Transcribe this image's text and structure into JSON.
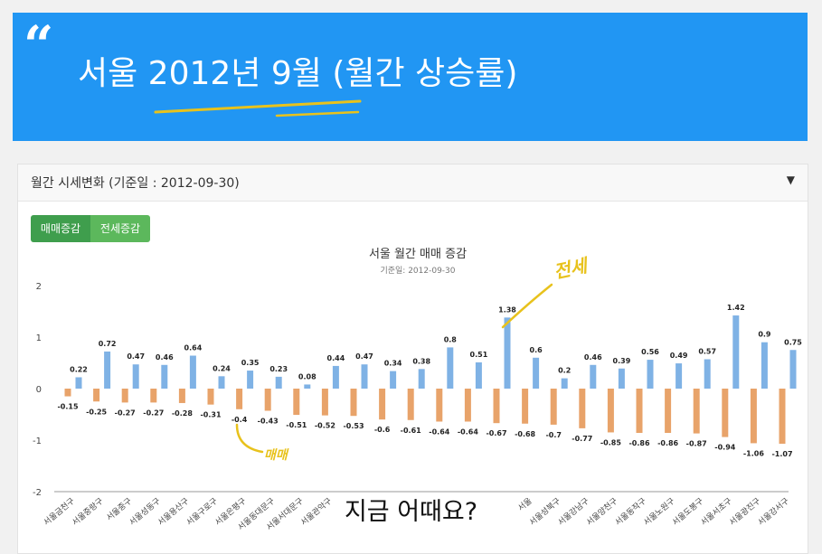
{
  "banner": {
    "quote_mark": "“",
    "title": "서울 2012년 9월 (월간 상승률)"
  },
  "card": {
    "title": "월간 시세변화 (기준일 : 2012-09-30)",
    "caret": "▼",
    "tabs": [
      {
        "label": "매매증감",
        "active": true
      },
      {
        "label": "전세증감",
        "active": false
      }
    ]
  },
  "annotations": {
    "up_label": "전세",
    "down_label": "매매"
  },
  "subtitle": "지금 어때요?",
  "colors": {
    "banner": "#2196f3",
    "jeonse_bar": "#7fb2e5",
    "sale_bar": "#e8a36a",
    "highlight": "#e8c21c"
  },
  "chart_data": {
    "type": "bar",
    "title": "서울 월간 매매 증감",
    "subtitle": "기준일: 2012-09-30",
    "ylim": [
      -2,
      2
    ],
    "yticks": [
      "2",
      "1",
      "0",
      "-1",
      "-2"
    ],
    "grid": false,
    "categories": [
      "서울금천구",
      "서울중랑구",
      "서울중구",
      "서울성동구",
      "서울용산구",
      "서울구로구",
      "서울은평구",
      "서울동대문구",
      "서울서대문구",
      "서울관악구",
      "",
      "",
      "",
      "",
      "",
      "",
      "서울",
      "서울성북구",
      "서울강남구",
      "서울양천구",
      "서울동작구",
      "서울노원구",
      "서울도봉구",
      "서울서초구",
      "서울광진구",
      "서울강서구"
    ],
    "series": [
      {
        "name": "",
        "color": "#e8a36a",
        "values": [
          -0.15,
          -0.25,
          -0.27,
          -0.27,
          -0.28,
          -0.31,
          -0.4,
          -0.43,
          -0.51,
          -0.52,
          -0.53,
          -0.6,
          -0.61,
          -0.64,
          -0.64,
          -0.67,
          -0.68,
          -0.7,
          -0.77,
          -0.85,
          -0.86,
          -0.86,
          -0.87,
          -0.94,
          -1.06,
          -1.07
        ]
      },
      {
        "name": "",
        "color": "#7fb2e5",
        "values": [
          0.22,
          0.72,
          0.47,
          0.46,
          0.64,
          0.24,
          0.35,
          0.23,
          0.08,
          0.44,
          0.47,
          0.34,
          0.38,
          0.8,
          0.51,
          1.38,
          0.6,
          0.2,
          0.46,
          0.39,
          0.56,
          0.49,
          0.57,
          1.42,
          0.9,
          0.75
        ]
      }
    ]
  }
}
